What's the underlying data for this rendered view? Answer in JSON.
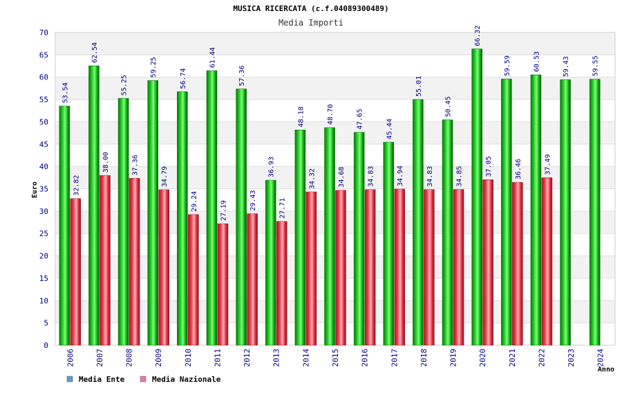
{
  "chart_data": {
    "type": "bar",
    "title": "MUSICA RICERCATA (c.f.04089300489)",
    "subtitle": "Media Importi",
    "ylabel": "Euro",
    "xlabel": "Anno",
    "ylim": [
      0,
      70
    ],
    "ytick_step": 5,
    "grid": true,
    "legend_position": "bottom-left",
    "categories": [
      "2006",
      "2007",
      "2008",
      "2009",
      "2010",
      "2011",
      "2012",
      "2013",
      "2014",
      "2015",
      "2016",
      "2017",
      "2018",
      "2019",
      "2020",
      "2021",
      "2022",
      "2023",
      "2024"
    ],
    "series": [
      {
        "name": "Media Ente",
        "legend_color": "#5b9bd5",
        "bar_color": "#10b010",
        "values": [
          53.54,
          62.54,
          55.25,
          59.25,
          56.74,
          61.44,
          57.36,
          36.93,
          48.18,
          48.7,
          47.65,
          45.44,
          55.01,
          50.45,
          66.32,
          59.59,
          60.53,
          59.43,
          59.55
        ],
        "labels": [
          "53.54",
          "62.54",
          "55.25",
          "59.25",
          "56.74",
          "61.44",
          "57.36",
          "36.93",
          "48.18",
          "48.70",
          "47.65",
          "45.44",
          "55.01",
          "50.45",
          "66.32",
          "59.59",
          "60.53",
          "59.43",
          "59.55"
        ]
      },
      {
        "name": "Media Nazionale",
        "legend_color": "#e07ab0",
        "bar_color": "#e03040",
        "values": [
          32.82,
          38.0,
          37.36,
          34.79,
          29.24,
          27.19,
          29.43,
          27.71,
          34.32,
          34.68,
          34.83,
          34.94,
          34.83,
          34.85,
          37.05,
          36.46,
          37.49,
          null,
          null
        ],
        "labels": [
          "32.82",
          "38.00",
          "37.36",
          "34.79",
          "29.24",
          "27.19",
          "29.43",
          "27.71",
          "34.32",
          "34.68",
          "34.83",
          "34.94",
          "34.83",
          "34.85",
          "37.05",
          "36.46",
          "37.49",
          "",
          ""
        ]
      }
    ]
  }
}
